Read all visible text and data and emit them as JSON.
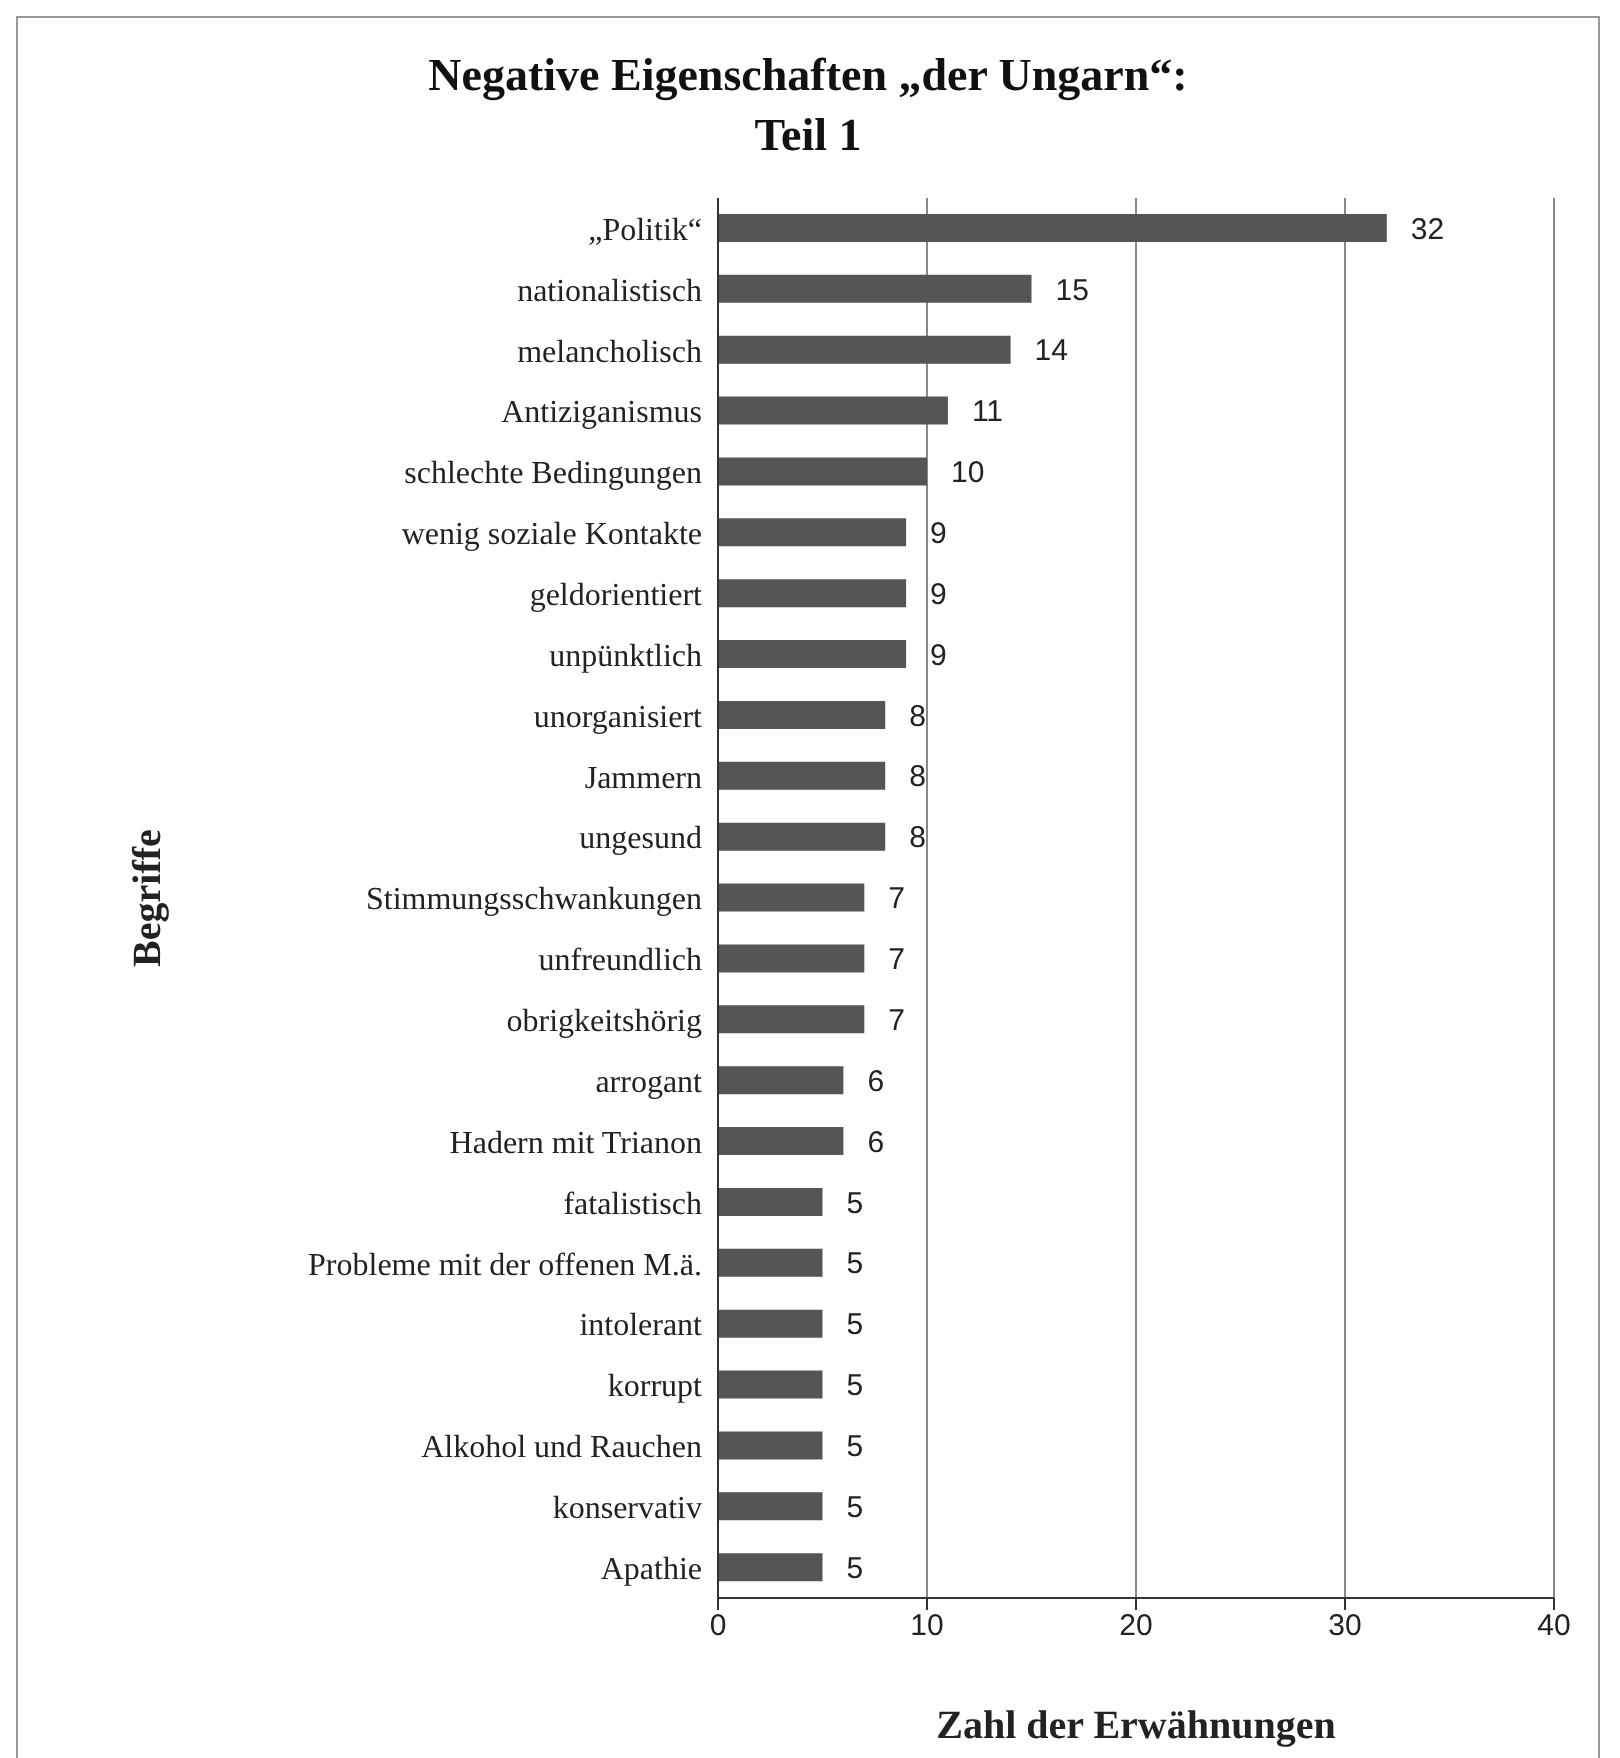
{
  "chart_data": {
    "type": "bar",
    "orientation": "horizontal",
    "title": "Negative Eigenschaften „der Ungarn“: Teil 1",
    "xlabel": "Zahl der Erwähnungen",
    "ylabel": "Begriffe",
    "categories": [
      "„Politik“",
      "nationalistisch",
      "melancholisch",
      "Antiziganismus",
      "schlechte Bedingungen",
      "wenig soziale Kontakte",
      "geldorientiert",
      "unpünktlich",
      "unorganisiert",
      "Jammern",
      "ungesund",
      "Stimmungsschwankungen",
      "unfreundlich",
      "obrigkeitshörig",
      "arrogant",
      "Hadern mit Trianon",
      "fatalistisch",
      "Probleme mit der offenen M.ä.",
      "intolerant",
      "korrupt",
      "Alkohol und Rauchen",
      "konservativ",
      "Apathie"
    ],
    "values": [
      32,
      15,
      14,
      11,
      10,
      9,
      9,
      9,
      8,
      8,
      8,
      7,
      7,
      7,
      6,
      6,
      5,
      5,
      5,
      5,
      5,
      5,
      5
    ],
    "color": "#555555",
    "xlim": [
      0,
      40
    ],
    "xticks": [
      0,
      10,
      20,
      30,
      40
    ],
    "grid": "x",
    "data_labels": true
  }
}
